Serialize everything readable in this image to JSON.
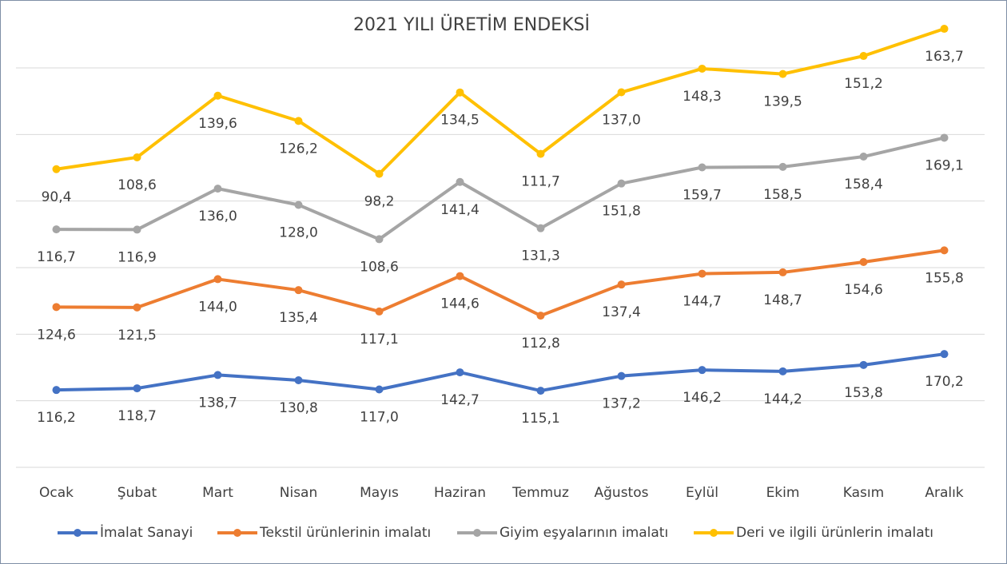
{
  "chart_data": {
    "type": "line",
    "stacked": true,
    "title": "2021 YILI ÜRETİM ENDEKSİ",
    "categories": [
      "Ocak",
      "Şubat",
      "Mart",
      "Nisan",
      "Mayıs",
      "Haziran",
      "Temmuz",
      "Ağustos",
      "Eylül",
      "Ekim",
      "Kasım",
      "Aralık"
    ],
    "ylim": [
      0,
      700
    ],
    "yticks": [
      0,
      100,
      200,
      300,
      400,
      500,
      600
    ],
    "grid": true,
    "legend": "bottom",
    "series": [
      {
        "name": "İmalat Sanayi",
        "color": "#4472c4",
        "values": [
          116.2,
          118.7,
          138.7,
          130.8,
          117.0,
          142.7,
          115.1,
          137.2,
          146.2,
          144.2,
          153.8,
          170.2
        ],
        "value_labels": [
          "116,2",
          "118,7",
          "138,7",
          "130,8",
          "117,0",
          "142,7",
          "115,1",
          "137,2",
          "146,2",
          "144,2",
          "153,8",
          "170,2"
        ]
      },
      {
        "name": "Tekstil ürünlerinin imalatı",
        "color": "#ed7d31",
        "values": [
          124.6,
          121.5,
          144.0,
          135.4,
          117.1,
          144.6,
          112.8,
          137.4,
          144.7,
          148.7,
          154.6,
          155.8
        ],
        "value_labels": [
          "124,6",
          "121,5",
          "144,0",
          "135,4",
          "117,1",
          "144,6",
          "112,8",
          "137,4",
          "144,7",
          "148,7",
          "154,6",
          "155,8"
        ]
      },
      {
        "name": "Giyim eşyalarının imalatı",
        "color": "#a5a5a5",
        "values": [
          116.7,
          116.9,
          136.0,
          128.0,
          108.6,
          141.4,
          131.3,
          151.8,
          159.7,
          158.5,
          158.4,
          169.1
        ],
        "value_labels": [
          "116,7",
          "116,9",
          "136,0",
          "128,0",
          "108,6",
          "141,4",
          "131,3",
          "151,8",
          "159,7",
          "158,5",
          "158,4",
          "169,1"
        ]
      },
      {
        "name": "Deri ve ilgili ürünlerin imalatı",
        "color": "#ffc000",
        "values": [
          90.4,
          108.6,
          139.6,
          126.2,
          98.2,
          134.5,
          111.7,
          137.0,
          148.3,
          139.5,
          151.2,
          163.7
        ],
        "value_labels": [
          "90,4",
          "108,6",
          "139,6",
          "126,2",
          "98,2",
          "134,5",
          "111,7",
          "137,0",
          "148,3",
          "139,5",
          "151,2",
          "163,7"
        ]
      }
    ]
  }
}
